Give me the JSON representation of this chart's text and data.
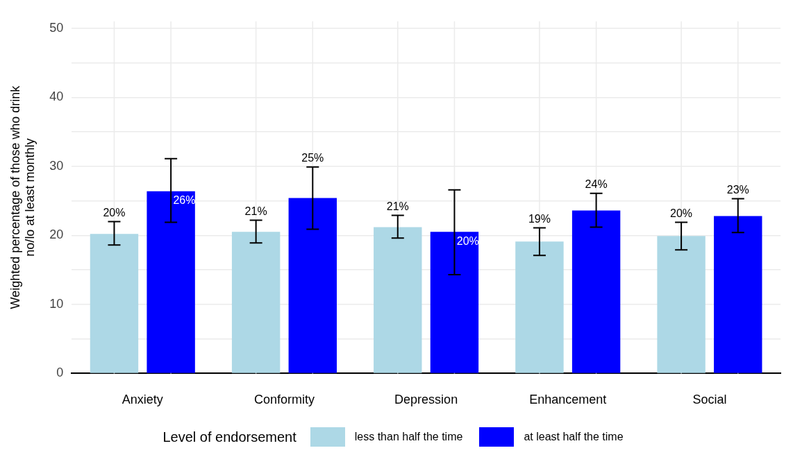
{
  "chart_data": {
    "type": "bar",
    "ylabel": "Weighted percentage of those who drink\nno/lo at least monthly",
    "legend_title": "Level of endorsement",
    "legend": "bottom",
    "grid": true,
    "categories": [
      "Anxiety",
      "Conformity",
      "Depression",
      "Enhancement",
      "Social"
    ],
    "ylim": [
      0,
      51
    ],
    "yticks": [
      0,
      {
        "value": 5,
        "label": null
      },
      10,
      {
        "value": 15,
        "label": null
      },
      20,
      {
        "value": 25,
        "label": null
      },
      30,
      {
        "value": 35,
        "label": null
      },
      40,
      {
        "value": 45,
        "label": null
      },
      50
    ],
    "series": [
      {
        "name": "less than half the time",
        "color": "#add8e6",
        "values": [
          20.2,
          20.5,
          21.2,
          19.1,
          19.9
        ],
        "errors": [
          [
            18.6,
            22.0
          ],
          [
            18.9,
            22.2
          ],
          [
            19.6,
            22.9
          ],
          [
            17.1,
            21.1
          ],
          [
            17.9,
            21.9
          ]
        ],
        "value_labels": [
          "20%",
          "21%",
          "21%",
          "19%",
          "20%"
        ]
      },
      {
        "name": "at least half the time",
        "color": "#0000ff",
        "values": [
          26.4,
          25.4,
          20.5,
          23.6,
          22.8
        ],
        "errors": [
          [
            21.9,
            31.1
          ],
          [
            20.9,
            29.9
          ],
          [
            14.3,
            26.6
          ],
          [
            21.2,
            26.1
          ],
          [
            20.4,
            25.3
          ]
        ],
        "value_labels": [
          "26%",
          "25%",
          "20%",
          "24%",
          "23%"
        ]
      }
    ]
  }
}
